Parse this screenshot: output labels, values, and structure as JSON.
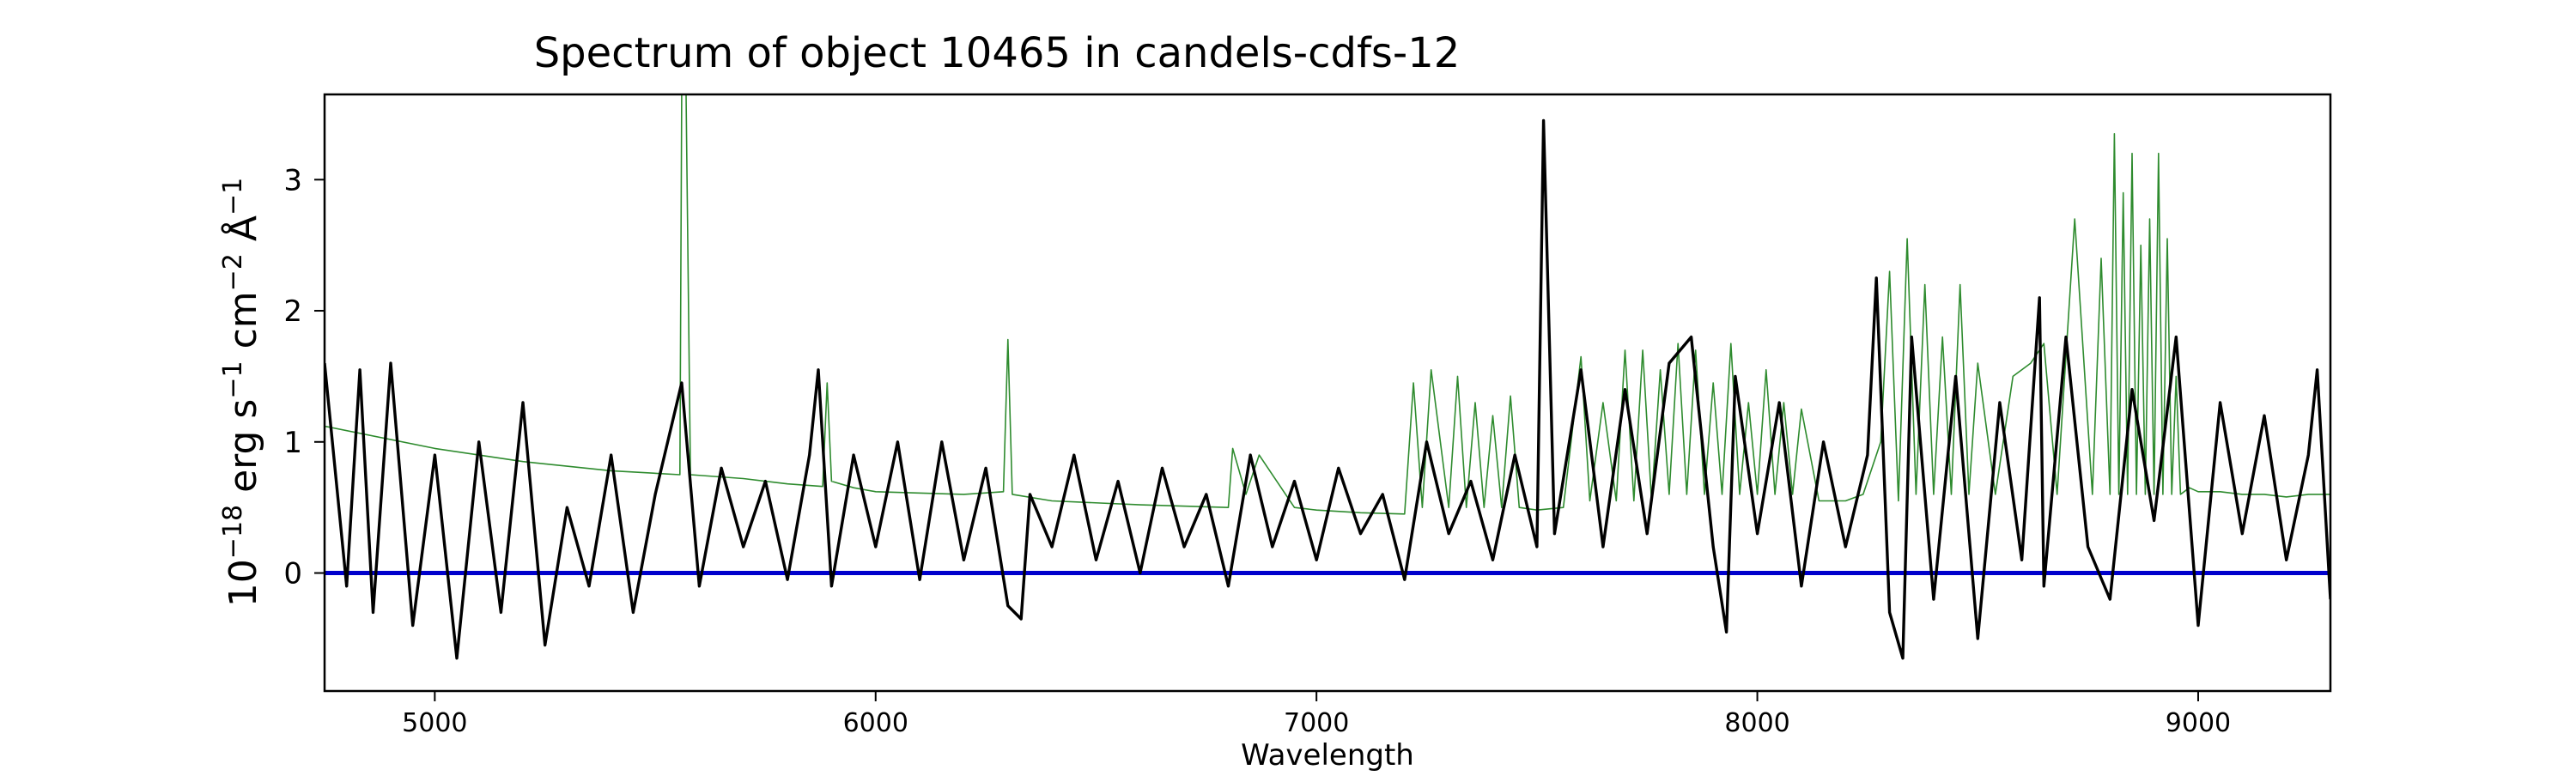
{
  "chart_data": {
    "type": "line",
    "title": "Spectrum of object 10465 in candels-cdfs-12",
    "xlabel": "Wavelength",
    "ylabel_parts": [
      "10",
      "−18",
      " erg s",
      "−1",
      " cm",
      "−2",
      " Å",
      "−1"
    ],
    "xlim": [
      4750,
      9300
    ],
    "ylim": [
      -0.9,
      3.65
    ],
    "x_ticks": [
      5000,
      6000,
      7000,
      8000,
      9000
    ],
    "y_ticks": [
      0,
      1,
      2,
      3
    ],
    "grid": false,
    "legend": "none",
    "colors": {
      "flux": "#000000",
      "model": "#2e8b2e",
      "zero": "#0000cc"
    },
    "series": [
      {
        "role": "flux",
        "color": "#000000",
        "x": [
          4750,
          4800,
          4830,
          4860,
          4900,
          4950,
          5000,
          5050,
          5100,
          5150,
          5200,
          5250,
          5300,
          5350,
          5400,
          5450,
          5500,
          5560,
          5600,
          5650,
          5700,
          5750,
          5800,
          5850,
          5870,
          5900,
          5950,
          6000,
          6050,
          6100,
          6150,
          6200,
          6250,
          6300,
          6330,
          6350,
          6400,
          6450,
          6500,
          6550,
          6600,
          6650,
          6700,
          6750,
          6800,
          6850,
          6900,
          6950,
          7000,
          7050,
          7100,
          7150,
          7200,
          7250,
          7300,
          7350,
          7400,
          7450,
          7500,
          7515,
          7540,
          7600,
          7650,
          7700,
          7750,
          7800,
          7850,
          7900,
          7930,
          7950,
          8000,
          8050,
          8100,
          8150,
          8200,
          8250,
          8270,
          8300,
          8330,
          8350,
          8400,
          8450,
          8500,
          8550,
          8600,
          8640,
          8650,
          8700,
          8750,
          8800,
          8850,
          8900,
          8950,
          9000,
          9050,
          9100,
          9150,
          9200,
          9250,
          9270,
          9300
        ],
        "y": [
          1.6,
          -0.1,
          1.55,
          -0.3,
          1.6,
          -0.4,
          0.9,
          -0.65,
          1.0,
          -0.3,
          1.3,
          -0.55,
          0.5,
          -0.1,
          0.9,
          -0.3,
          0.6,
          1.45,
          -0.1,
          0.8,
          0.2,
          0.7,
          -0.05,
          0.9,
          1.55,
          -0.1,
          0.9,
          0.2,
          1.0,
          -0.05,
          1.0,
          0.1,
          0.8,
          -0.25,
          -0.35,
          0.6,
          0.2,
          0.9,
          0.1,
          0.7,
          0.0,
          0.8,
          0.2,
          0.6,
          -0.1,
          0.9,
          0.2,
          0.7,
          0.1,
          0.8,
          0.3,
          0.6,
          -0.05,
          1.0,
          0.3,
          0.7,
          0.1,
          0.9,
          0.2,
          3.45,
          0.3,
          1.55,
          0.2,
          1.4,
          0.3,
          1.6,
          1.8,
          0.2,
          -0.45,
          1.5,
          0.3,
          1.3,
          -0.1,
          1.0,
          0.2,
          0.9,
          2.25,
          -0.3,
          -0.65,
          1.8,
          -0.2,
          1.5,
          -0.5,
          1.3,
          0.1,
          2.1,
          -0.1,
          1.8,
          0.2,
          -0.2,
          1.4,
          0.4,
          1.8,
          -0.4,
          1.3,
          0.3,
          1.2,
          0.1,
          0.9,
          1.55,
          -0.2
        ]
      },
      {
        "role": "model",
        "color": "#2e8b2e",
        "x": [
          4750,
          5000,
          5200,
          5400,
          5556,
          5560,
          5570,
          5580,
          5700,
          5800,
          5880,
          5890,
          5900,
          5950,
          6000,
          6200,
          6290,
          6300,
          6310,
          6400,
          6600,
          6800,
          6810,
          6840,
          6870,
          6950,
          7000,
          7100,
          7200,
          7220,
          7240,
          7260,
          7300,
          7320,
          7340,
          7360,
          7380,
          7400,
          7420,
          7440,
          7460,
          7500,
          7560,
          7600,
          7620,
          7650,
          7680,
          7700,
          7720,
          7740,
          7760,
          7780,
          7800,
          7820,
          7840,
          7860,
          7880,
          7900,
          7920,
          7940,
          7960,
          7980,
          8000,
          8020,
          8040,
          8060,
          8080,
          8100,
          8140,
          8200,
          8240,
          8280,
          8300,
          8320,
          8340,
          8360,
          8380,
          8400,
          8420,
          8440,
          8460,
          8480,
          8500,
          8540,
          8580,
          8620,
          8650,
          8680,
          8720,
          8760,
          8780,
          8800,
          8810,
          8820,
          8830,
          8840,
          8850,
          8860,
          8870,
          8880,
          8890,
          8900,
          8910,
          8920,
          8930,
          8940,
          8950,
          8960,
          8980,
          9000,
          9050,
          9100,
          9150,
          9200,
          9250,
          9300
        ],
        "y": [
          1.12,
          0.95,
          0.85,
          0.78,
          0.75,
          3.65,
          3.65,
          0.75,
          0.72,
          0.68,
          0.66,
          1.45,
          0.7,
          0.65,
          0.62,
          0.6,
          0.62,
          1.78,
          0.6,
          0.55,
          0.52,
          0.5,
          0.95,
          0.6,
          0.9,
          0.5,
          0.48,
          0.46,
          0.45,
          1.45,
          0.5,
          1.55,
          0.5,
          1.5,
          0.5,
          1.3,
          0.5,
          1.2,
          0.5,
          1.35,
          0.5,
          0.48,
          0.5,
          1.65,
          0.55,
          1.3,
          0.55,
          1.7,
          0.55,
          1.7,
          0.55,
          1.55,
          0.6,
          1.75,
          0.6,
          1.7,
          0.6,
          1.45,
          0.6,
          1.75,
          0.6,
          1.3,
          0.6,
          1.55,
          0.6,
          1.3,
          0.6,
          1.25,
          0.55,
          0.55,
          0.6,
          1.0,
          2.3,
          0.55,
          2.55,
          0.6,
          2.2,
          0.6,
          1.8,
          0.6,
          2.2,
          0.6,
          1.6,
          0.6,
          1.5,
          1.6,
          1.75,
          0.6,
          2.7,
          0.6,
          2.4,
          0.6,
          3.35,
          0.6,
          2.9,
          0.6,
          3.2,
          0.6,
          2.5,
          0.6,
          2.7,
          0.6,
          3.2,
          0.6,
          2.55,
          0.6,
          1.5,
          0.6,
          0.65,
          0.62,
          0.62,
          0.6,
          0.6,
          0.58,
          0.6,
          0.6
        ]
      },
      {
        "role": "zero",
        "color": "#0000cc",
        "x": [
          4750,
          9300
        ],
        "y": [
          0,
          0
        ]
      }
    ]
  }
}
